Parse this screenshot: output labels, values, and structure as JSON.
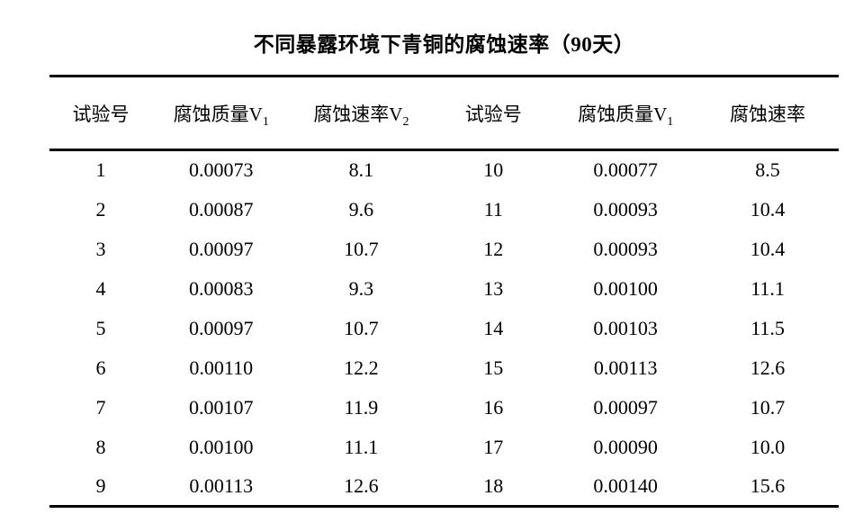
{
  "title": "不同暴露环境下青铜的腐蚀速率（90天）",
  "table": {
    "headers": [
      {
        "text": "试验号",
        "sub": ""
      },
      {
        "text": "腐蚀质量V",
        "sub": "1"
      },
      {
        "text": "腐蚀速率V",
        "sub": "2"
      },
      {
        "text": "试验号",
        "sub": ""
      },
      {
        "text": "腐蚀质量V",
        "sub": "1"
      },
      {
        "text": "腐蚀速率",
        "sub": ""
      }
    ],
    "rows": [
      [
        "1",
        "0.00073",
        "8.1",
        "10",
        "0.00077",
        "8.5"
      ],
      [
        "2",
        "0.00087",
        "9.6",
        "11",
        "0.00093",
        "10.4"
      ],
      [
        "3",
        "0.00097",
        "10.7",
        "12",
        "0.00093",
        "10.4"
      ],
      [
        "4",
        "0.00083",
        "9.3",
        "13",
        "0.00100",
        "11.1"
      ],
      [
        "5",
        "0.00097",
        "10.7",
        "14",
        "0.00103",
        "11.5"
      ],
      [
        "6",
        "0.00110",
        "12.2",
        "15",
        "0.00113",
        "12.6"
      ],
      [
        "7",
        "0.00107",
        "11.9",
        "16",
        "0.00097",
        "10.7"
      ],
      [
        "8",
        "0.00100",
        "11.1",
        "17",
        "0.00090",
        "10.0"
      ],
      [
        "9",
        "0.00113",
        "12.6",
        "18",
        "0.00140",
        "15.6"
      ]
    ]
  }
}
